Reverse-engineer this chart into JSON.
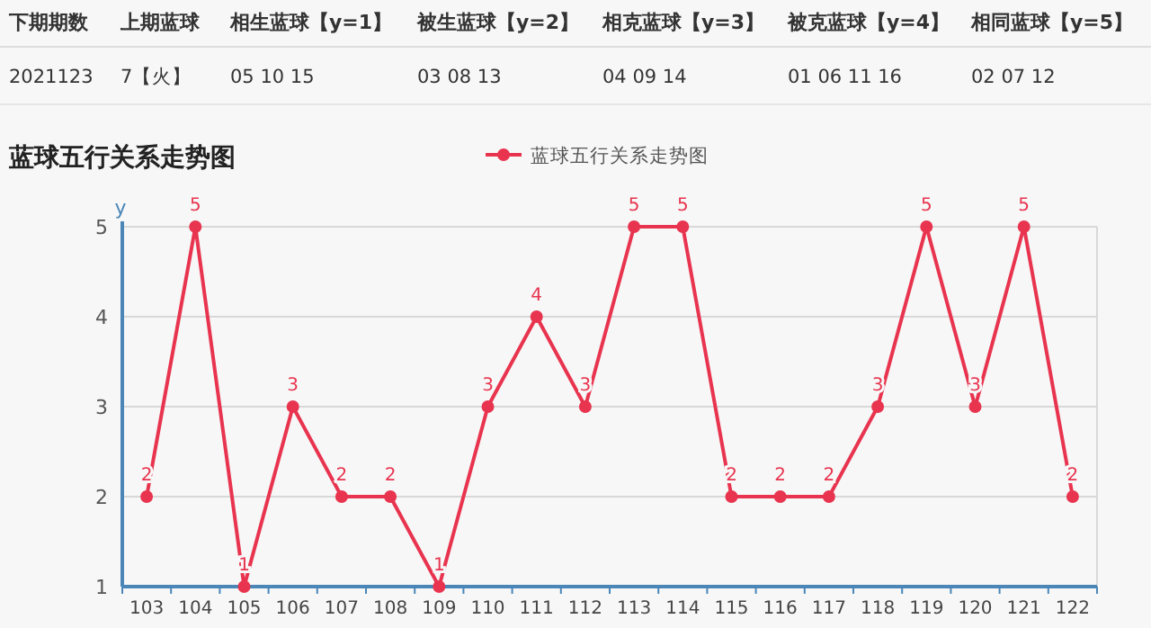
{
  "chart_data": {
    "type": "line",
    "title": "蓝球五行关系走势图",
    "ylabel": "y",
    "annotations": [
      "下期期数",
      "上期蓝球",
      "相生蓝球【y=1】",
      "被生蓝球【y=2】",
      "相克蓝球【y=3】",
      "被克蓝球【y=4】",
      "相同蓝球【y=5】",
      "2021123",
      "7【火】",
      "05 10 15",
      "03 08 13",
      "04 09 14",
      "01 06 11 16",
      "02 07 12"
    ],
    "categories": [
      "103",
      "104",
      "105",
      "106",
      "107",
      "108",
      "109",
      "110",
      "111",
      "112",
      "113",
      "114",
      "115",
      "116",
      "117",
      "118",
      "119",
      "120",
      "121",
      "122"
    ],
    "series": [
      {
        "name": "蓝球五行关系走势图",
        "color": "#e8344f",
        "values": [
          2,
          5,
          1,
          3,
          2,
          2,
          1,
          3,
          4,
          3,
          5,
          5,
          2,
          2,
          2,
          3,
          5,
          3,
          5,
          2
        ]
      }
    ],
    "ylim": [
      1,
      5
    ],
    "yticks": [
      1,
      2,
      3,
      4,
      5
    ],
    "grid": "y",
    "legend": "top",
    "marker": "circle",
    "line_style": "solid",
    "data_labels": true
  }
}
